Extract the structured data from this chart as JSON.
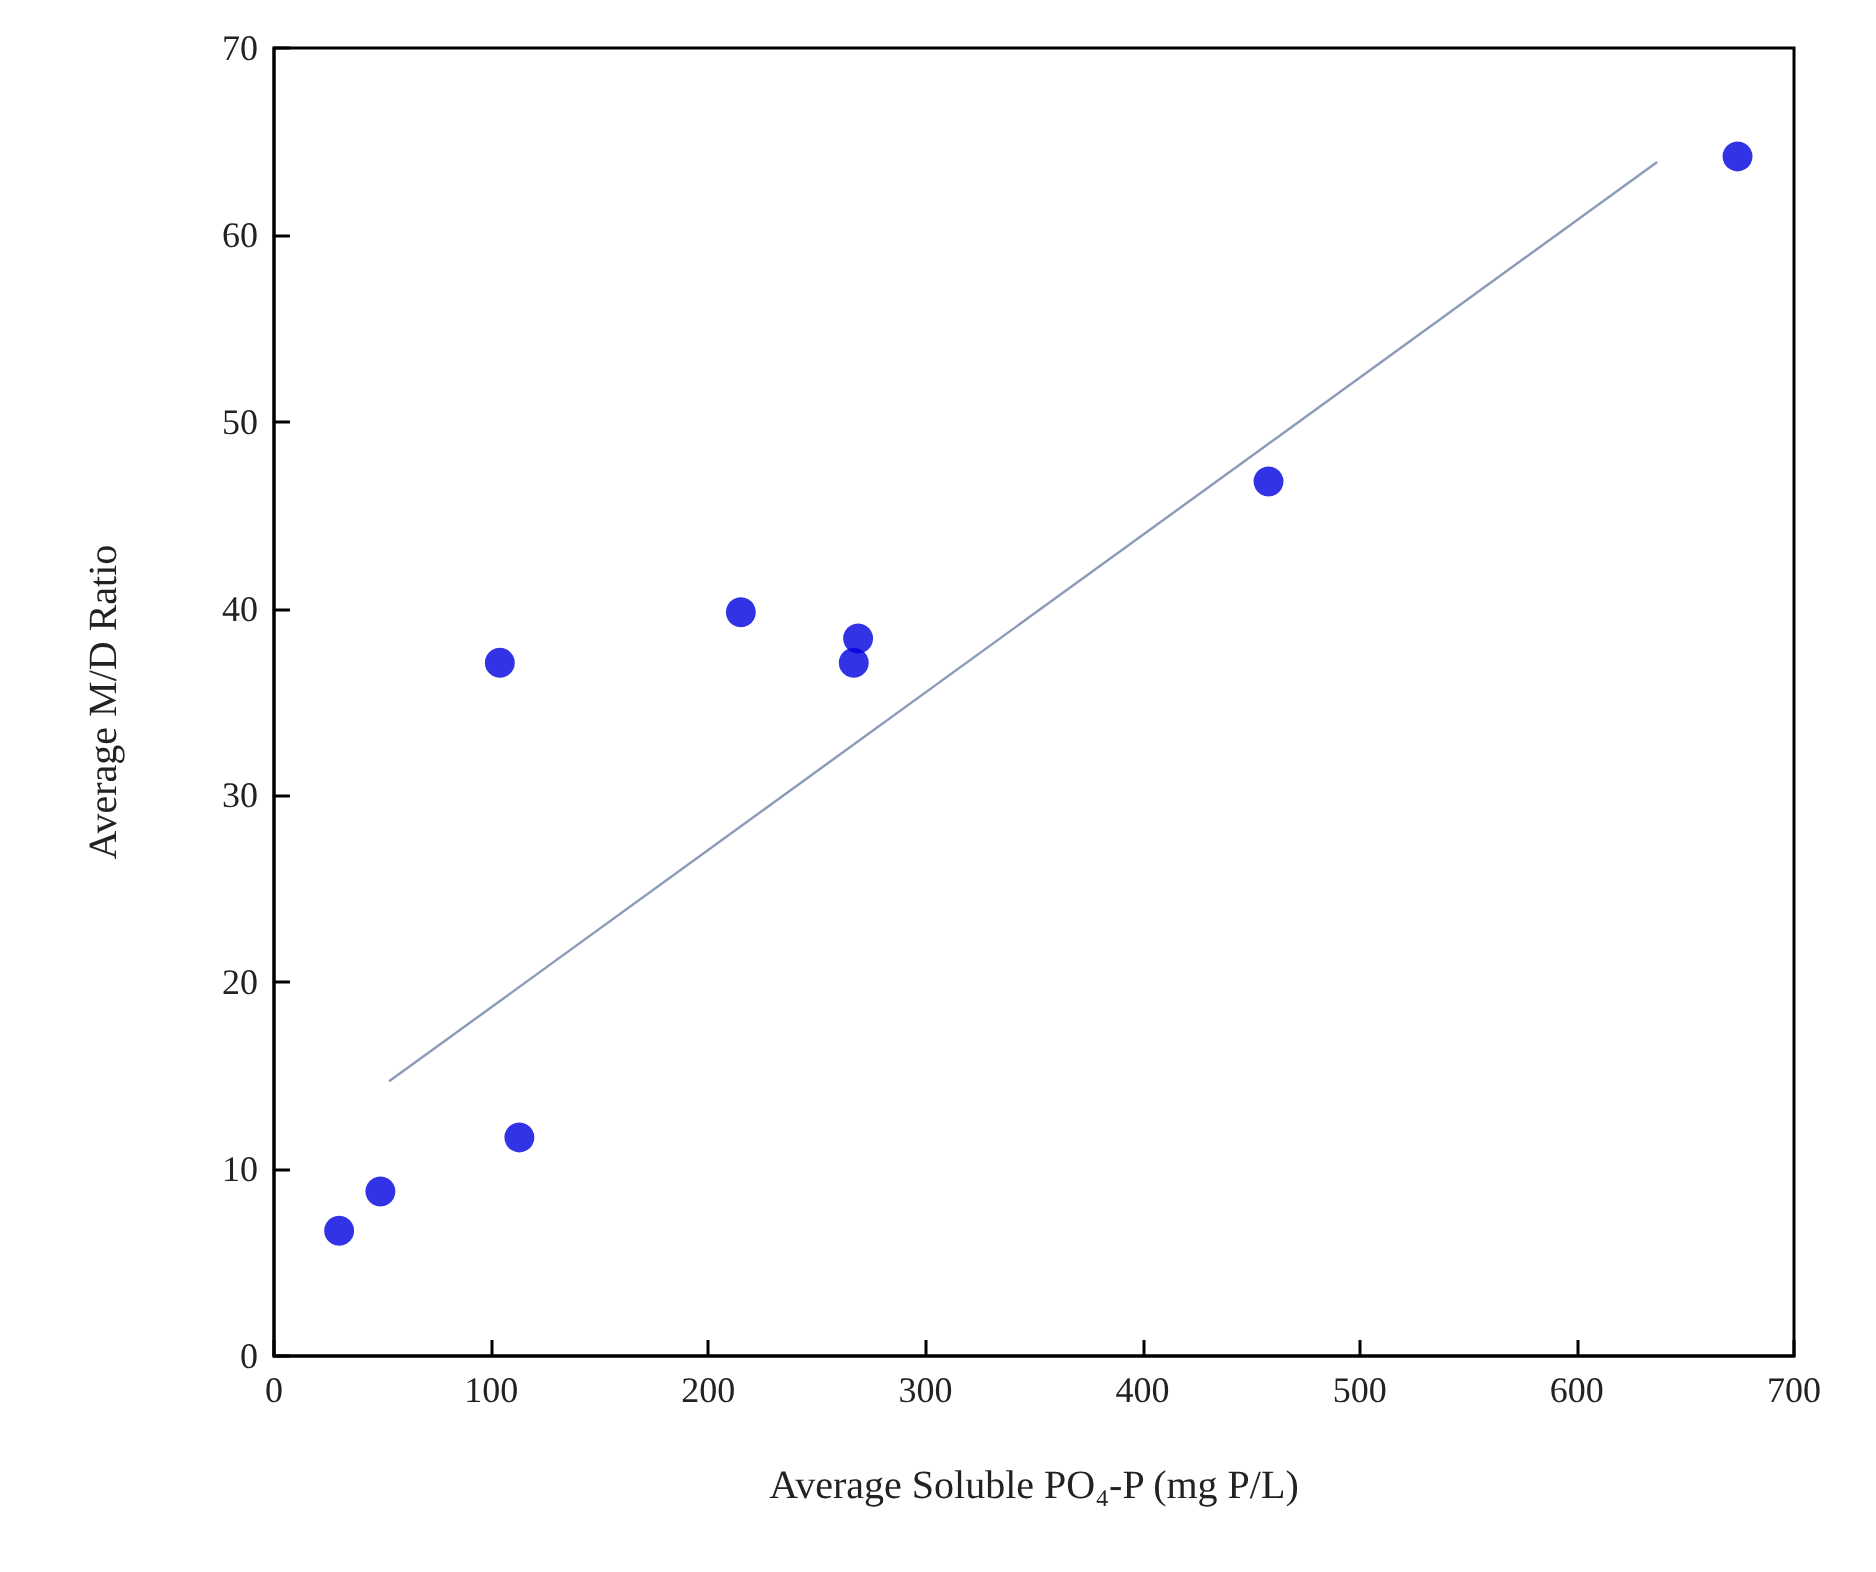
{
  "chart_data": {
    "type": "scatter",
    "xlabel": "Average Soluble PO₄-P (mg P/L)",
    "ylabel": "Average M/D Ratio",
    "xlim": [
      0,
      700
    ],
    "xticks": [
      0,
      100,
      200,
      300,
      400,
      500,
      600,
      700
    ],
    "ylim": [
      0,
      70
    ],
    "yticks": [
      0,
      10,
      20,
      30,
      40,
      50,
      60,
      70
    ],
    "grid": false,
    "marker": "circle",
    "series": [
      {
        "color": "#0000e0",
        "x": [
          30,
          49,
          104,
          113,
          215,
          267,
          269,
          458,
          674
        ],
        "values": [
          6.7,
          8.8,
          37.1,
          11.7,
          39.8,
          37.1,
          38.4,
          46.8,
          64.2
        ]
      },
      {
        "type": "line",
        "color": "#8a9ab8",
        "x": [
          53,
          637
        ],
        "values": [
          14.7,
          63.9
        ],
        "marker": "none"
      }
    ]
  }
}
